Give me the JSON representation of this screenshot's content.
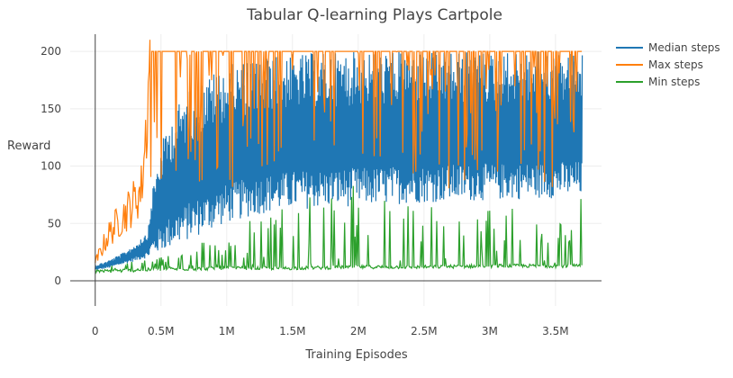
{
  "chart_data": {
    "type": "line",
    "title": "Tabular Q-learning Plays Cartpole",
    "xlabel": "Training Episodes",
    "ylabel": "Reward",
    "xlim": [
      -190000,
      3850000
    ],
    "ylim": [
      -22,
      215
    ],
    "x_ticks": [
      0,
      500000,
      1000000,
      1500000,
      2000000,
      2500000,
      3000000,
      3500000
    ],
    "x_tick_labels": [
      "0",
      "0.5M",
      "1M",
      "1.5M",
      "2M",
      "2.5M",
      "3M",
      "3.5M"
    ],
    "y_ticks": [
      0,
      50,
      100,
      150,
      200
    ],
    "y_tick_labels": [
      "0",
      "50",
      "100",
      "150",
      "200"
    ],
    "grid": true,
    "legend_position": "top-right",
    "series": [
      {
        "name": "Median steps",
        "color": "#1f77b4",
        "x": [
          0,
          100000,
          200000,
          300000,
          400000,
          430000,
          500000,
          600000,
          700000,
          800000,
          900000,
          1000000,
          1250000,
          1500000,
          2000000,
          2500000,
          3000000,
          3500000,
          3700000
        ],
        "lower": [
          9,
          11,
          14,
          17,
          20,
          22,
          25,
          30,
          35,
          40,
          45,
          50,
          58,
          62,
          65,
          68,
          70,
          72,
          73
        ],
        "upper": [
          14,
          18,
          24,
          32,
          45,
          80,
          120,
          150,
          165,
          175,
          182,
          188,
          195,
          198,
          200,
          200,
          200,
          200,
          200
        ]
      },
      {
        "name": "Max steps",
        "color": "#ff7f0e",
        "x": [
          0,
          50000,
          100000,
          150000,
          200000,
          250000,
          300000,
          350000,
          380000,
          400000,
          420000,
          440000,
          480000,
          500000,
          600000,
          800000,
          1000000,
          1500000,
          2000000,
          2500000,
          3000000,
          3500000,
          3700000
        ],
        "values": [
          15,
          28,
          40,
          48,
          55,
          62,
          70,
          80,
          120,
          160,
          200,
          200,
          200,
          200,
          200,
          200,
          200,
          200,
          200,
          200,
          200,
          200,
          200
        ]
      },
      {
        "name": "Min steps",
        "color": "#2ca02c",
        "x": [
          0,
          500000,
          1000000,
          1500000,
          2000000,
          2500000,
          3000000,
          3500000,
          3700000
        ],
        "values": [
          8,
          10,
          11,
          11,
          12,
          12,
          13,
          13,
          13
        ],
        "spike_max": [
          12,
          22,
          45,
          70,
          85,
          70,
          65,
          60,
          72
        ]
      }
    ]
  }
}
